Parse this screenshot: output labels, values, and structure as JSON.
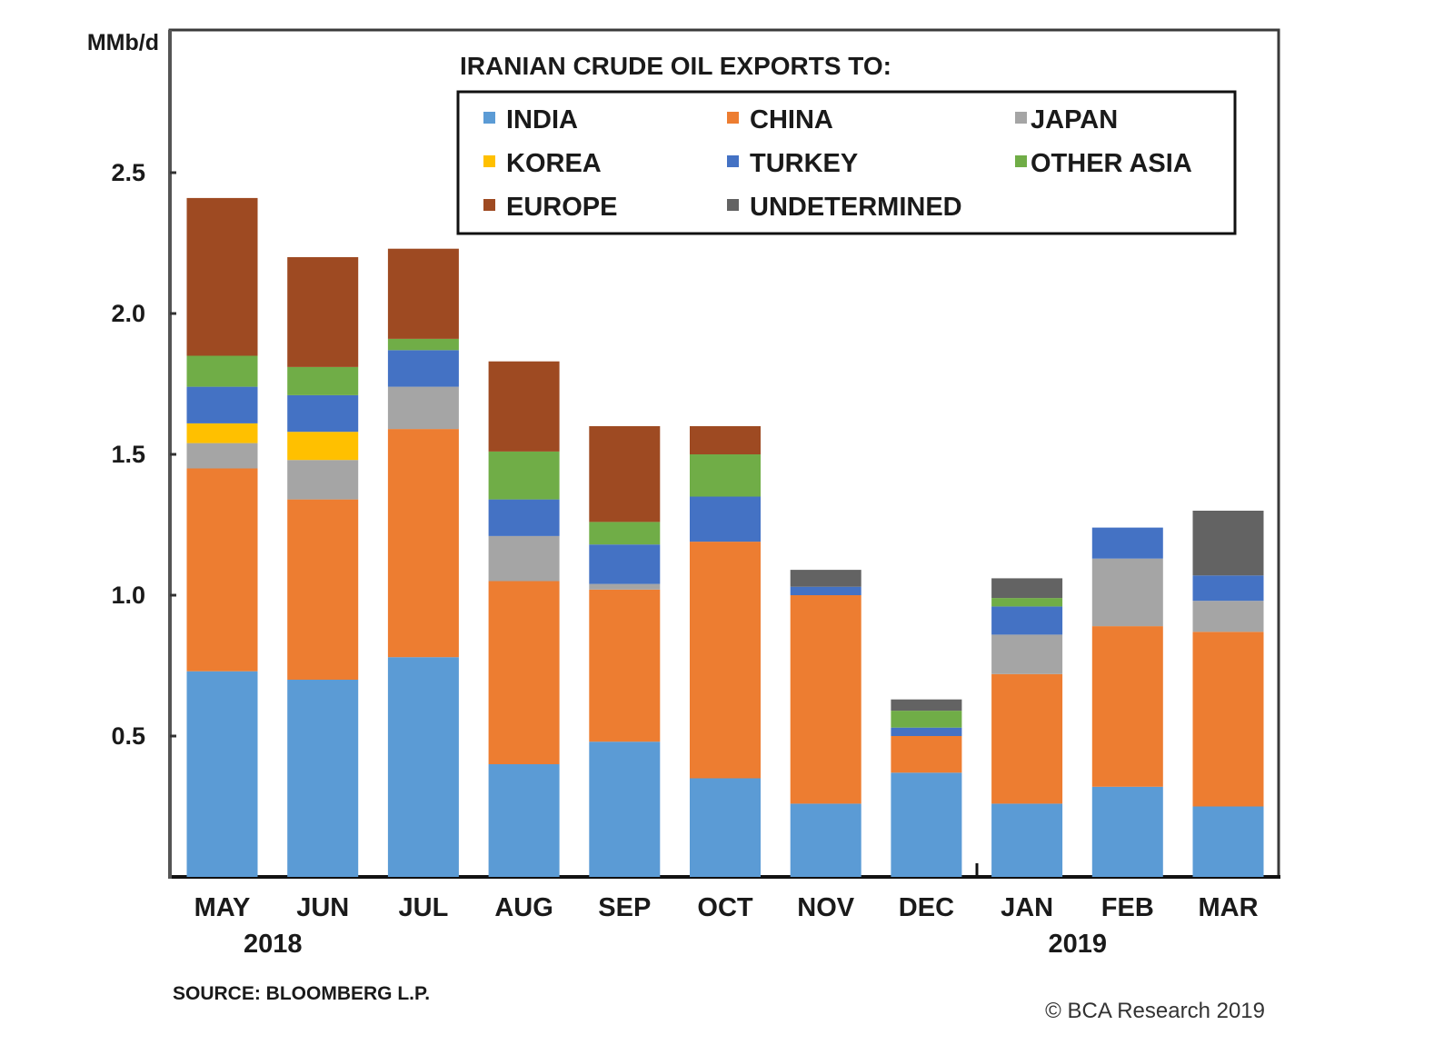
{
  "chart_data": {
    "type": "bar",
    "stacked": true,
    "title": "IRANIAN CRUDE OIL EXPORTS TO:",
    "ylabel": "MMb/d",
    "xlabel": "",
    "ylim": [
      0,
      2.75
    ],
    "yticks": [
      0.5,
      1.0,
      1.5,
      2.0,
      2.5
    ],
    "ytick_labels": [
      "0.5",
      "1.0",
      "1.5",
      "2.0",
      "2.5"
    ],
    "grid": false,
    "legend_position": "top-right",
    "categories": [
      "MAY",
      "JUN",
      "JUL",
      "AUG",
      "SEP",
      "OCT",
      "NOV",
      "DEC",
      "JAN",
      "FEB",
      "MAR"
    ],
    "year_labels": [
      {
        "label": "2018",
        "under_category": 1
      },
      {
        "label": "2019",
        "under_category": 9
      }
    ],
    "series": [
      {
        "name": "INDIA",
        "color": "#5b9bd5",
        "values": [
          0.73,
          0.7,
          0.78,
          0.4,
          0.48,
          0.35,
          0.26,
          0.37,
          0.26,
          0.32,
          0.25
        ]
      },
      {
        "name": "CHINA",
        "color": "#ed7d31",
        "values": [
          0.72,
          0.64,
          0.81,
          0.65,
          0.54,
          0.84,
          0.74,
          0.13,
          0.46,
          0.57,
          0.62
        ]
      },
      {
        "name": "JAPAN",
        "color": "#a5a5a5",
        "values": [
          0.09,
          0.14,
          0.15,
          0.16,
          0.02,
          0.0,
          0.0,
          0.0,
          0.14,
          0.24,
          0.11
        ]
      },
      {
        "name": "KOREA",
        "color": "#ffc000",
        "values": [
          0.07,
          0.1,
          0.0,
          0.0,
          0.0,
          0.0,
          0.0,
          0.0,
          0.0,
          0.0,
          0.0
        ]
      },
      {
        "name": "TURKEY",
        "color": "#4472c4",
        "values": [
          0.13,
          0.13,
          0.13,
          0.13,
          0.14,
          0.16,
          0.03,
          0.03,
          0.1,
          0.11,
          0.09
        ]
      },
      {
        "name": "OTHER ASIA",
        "color": "#70ad47",
        "values": [
          0.11,
          0.1,
          0.04,
          0.17,
          0.08,
          0.15,
          0.0,
          0.06,
          0.03,
          0.0,
          0.0
        ]
      },
      {
        "name": "EUROPE",
        "color": "#9e4a22",
        "values": [
          0.56,
          0.39,
          0.32,
          0.32,
          0.34,
          0.1,
          0.0,
          0.0,
          0.0,
          0.0,
          0.0
        ]
      },
      {
        "name": "UNDETERMINED",
        "color": "#636363",
        "values": [
          0.0,
          0.0,
          0.0,
          0.0,
          0.0,
          0.0,
          0.06,
          0.04,
          0.07,
          0.0,
          0.23
        ]
      }
    ],
    "legend_order": [
      "INDIA",
      "CHINA",
      "JAPAN",
      "KOREA",
      "TURKEY",
      "OTHER ASIA",
      "EUROPE",
      "UNDETERMINED"
    ],
    "annotations": {
      "source": "SOURCE: BLOOMBERG L.P.",
      "copyright": "© BCA Research 2019"
    }
  }
}
